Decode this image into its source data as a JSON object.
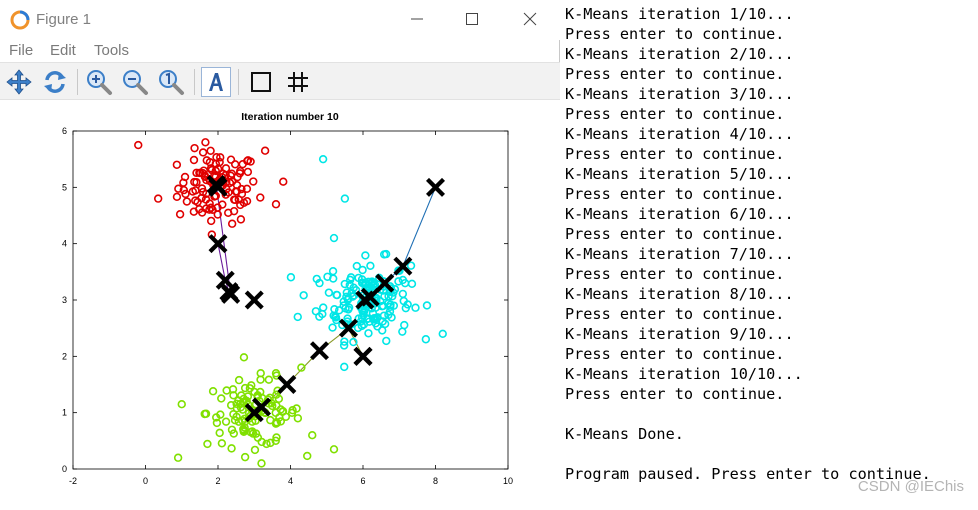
{
  "window": {
    "title": "Figure 1"
  },
  "menu": [
    "File",
    "Edit",
    "Tools"
  ],
  "toolbar": [
    "pan-icon",
    "rotate-icon",
    "zoom-in-icon",
    "zoom-out-icon",
    "zoom-reset-icon",
    "insert-text-icon",
    "insert-rectangle-icon",
    "grid-toggle-icon"
  ],
  "chart_data": {
    "type": "scatter",
    "title": "Iteration number 10",
    "xlim": [
      -2,
      10
    ],
    "ylim": [
      0,
      6
    ],
    "xticks": [
      -2,
      0,
      2,
      4,
      6,
      8,
      10
    ],
    "yticks": [
      0,
      1,
      2,
      3,
      4,
      5,
      6
    ],
    "grid": false,
    "colors": {
      "cluster1": "#e00000",
      "cluster2": "#00e6e6",
      "cluster3": "#80e000",
      "centroid": "#000000",
      "path1": "#6a1b9a",
      "path2": "#1f6fb4",
      "path3": "#8a9a2a"
    },
    "series": [
      {
        "color": "red",
        "center": [
          2.0,
          5.0
        ],
        "spread": [
          0.55,
          0.32
        ],
        "count": 110,
        "outliers": [
          [
            -0.2,
            5.75
          ],
          [
            3.3,
            5.65
          ],
          [
            3.8,
            5.1
          ],
          [
            0.35,
            4.8
          ],
          [
            3.6,
            4.7
          ]
        ]
      },
      {
        "color": "cyan",
        "center": [
          6.1,
          3.0
        ],
        "spread": [
          0.6,
          0.35
        ],
        "count": 160,
        "outliers": [
          [
            4.9,
            5.5
          ],
          [
            5.5,
            4.8
          ],
          [
            5.2,
            4.1
          ],
          [
            4.7,
            2.8
          ],
          [
            4.2,
            2.7
          ],
          [
            8.2,
            2.4
          ],
          [
            4.8,
            3.3
          ]
        ]
      },
      {
        "color": "green",
        "center": [
          3.0,
          1.0
        ],
        "spread": [
          0.65,
          0.3
        ],
        "count": 110,
        "outliers": [
          [
            0.9,
            0.2
          ],
          [
            1.0,
            1.15
          ],
          [
            5.2,
            0.35
          ],
          [
            4.3,
            1.8
          ],
          [
            3.6,
            1.7
          ],
          [
            3.2,
            0.1
          ],
          [
            4.6,
            0.6
          ]
        ]
      }
    ],
    "centroid_paths": [
      {
        "points": [
          [
            2.0,
            4.0
          ],
          [
            2.2,
            3.35
          ],
          [
            2.3,
            3.15
          ],
          [
            2.35,
            3.1
          ],
          [
            1.95,
            5.05
          ],
          [
            2.0,
            5.0
          ]
        ]
      },
      {
        "points": [
          [
            8.0,
            5.0
          ],
          [
            7.1,
            3.6
          ],
          [
            6.6,
            3.3
          ],
          [
            6.2,
            3.05
          ],
          [
            6.05,
            3.0
          ]
        ]
      },
      {
        "points": [
          [
            6.0,
            2.0
          ],
          [
            5.6,
            2.5
          ],
          [
            4.8,
            2.1
          ],
          [
            3.9,
            1.5
          ],
          [
            3.2,
            1.1
          ],
          [
            3.0,
            1.0
          ]
        ]
      }
    ],
    "extra_centroids": [
      [
        3.0,
        3.0
      ],
      [
        6.0,
        2.0
      ]
    ]
  },
  "console": {
    "lines": [
      "K-Means iteration 1/10...",
      "Press enter to continue.",
      "K-Means iteration 2/10...",
      "Press enter to continue.",
      "K-Means iteration 3/10...",
      "Press enter to continue.",
      "K-Means iteration 4/10...",
      "Press enter to continue.",
      "K-Means iteration 5/10...",
      "Press enter to continue.",
      "K-Means iteration 6/10...",
      "Press enter to continue.",
      "K-Means iteration 7/10...",
      "Press enter to continue.",
      "K-Means iteration 8/10...",
      "Press enter to continue.",
      "K-Means iteration 9/10...",
      "Press enter to continue.",
      "K-Means iteration 10/10...",
      "Press enter to continue.",
      "",
      "K-Means Done.",
      "",
      "Program paused. Press enter to continue."
    ]
  },
  "watermark": "CSDN @IEChis"
}
